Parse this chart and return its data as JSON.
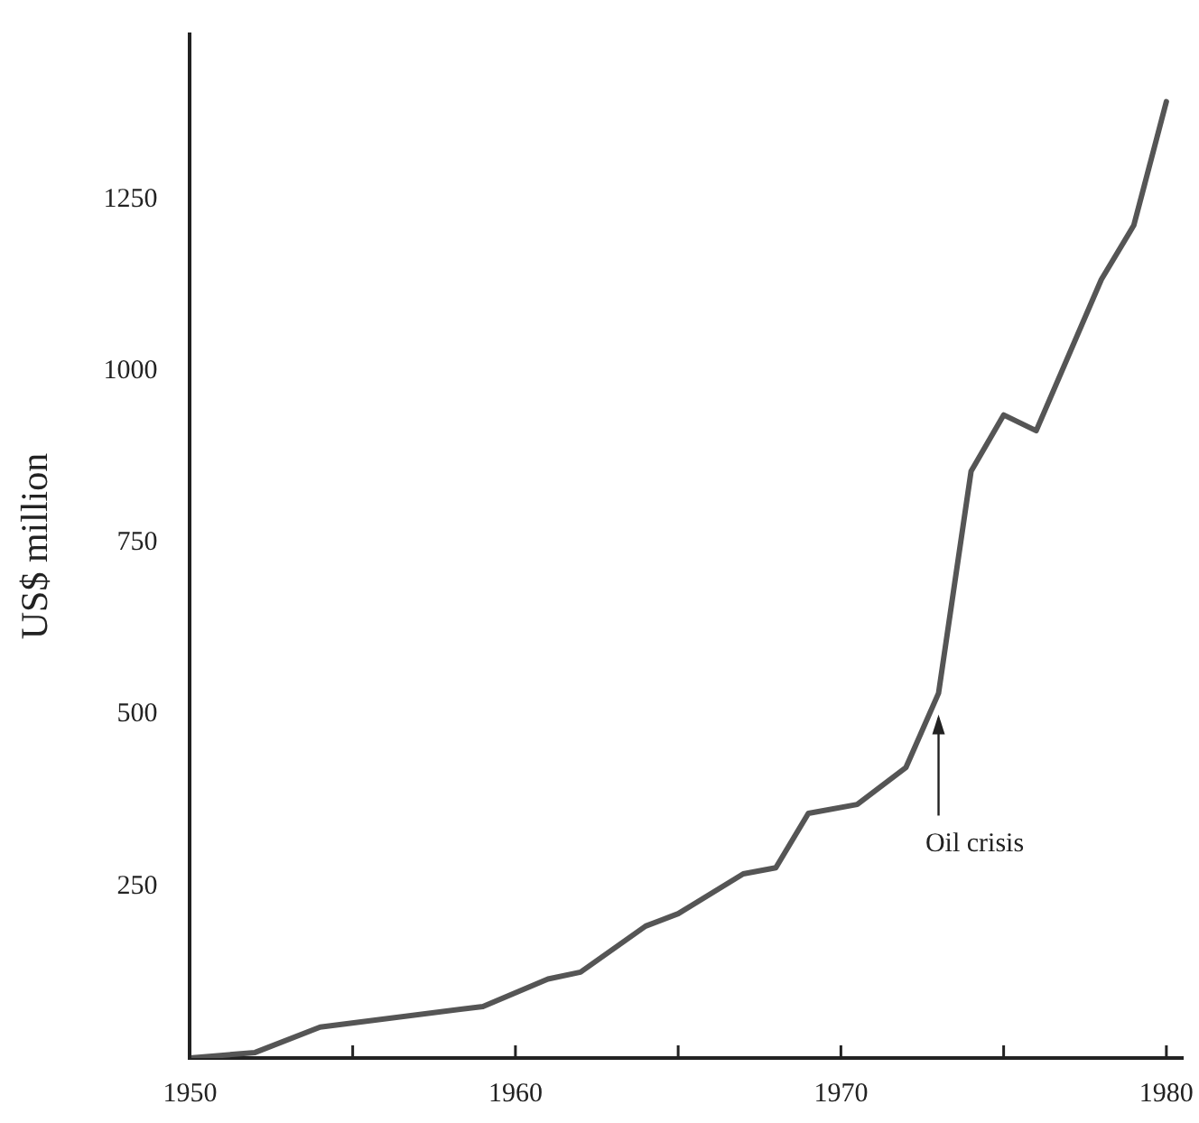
{
  "chart_data": {
    "type": "line",
    "ylabel": "US$ million",
    "x": [
      1950,
      1952,
      1954,
      1959,
      1961,
      1962,
      1964,
      1965,
      1967,
      1968,
      1969,
      1970.5,
      1972,
      1973,
      1974,
      1975,
      1976,
      1978,
      1979,
      1980
    ],
    "series": [
      {
        "color": "#555555",
        "values": [
          0,
          8,
          45,
          75,
          115,
          125,
          192,
          210,
          268,
          277,
          356,
          369,
          423,
          531,
          854,
          936,
          913,
          1133,
          1212,
          1392
        ]
      }
    ],
    "xlim": [
      1950,
      1980.5
    ],
    "xticks": [
      1950,
      {
        "value": 1955,
        "label": null
      },
      1960,
      {
        "value": 1965,
        "label": null
      },
      1970,
      {
        "value": 1975,
        "label": null
      },
      1980
    ],
    "ylim": [
      0,
      1490
    ],
    "yticks": [
      250,
      500,
      750,
      1000,
      1250
    ],
    "grid": false,
    "legend": false,
    "marker": "none",
    "line_style": "solid",
    "annotations": [
      {
        "text": "Oil crisis",
        "x": 1973,
        "y": 500
      }
    ]
  }
}
